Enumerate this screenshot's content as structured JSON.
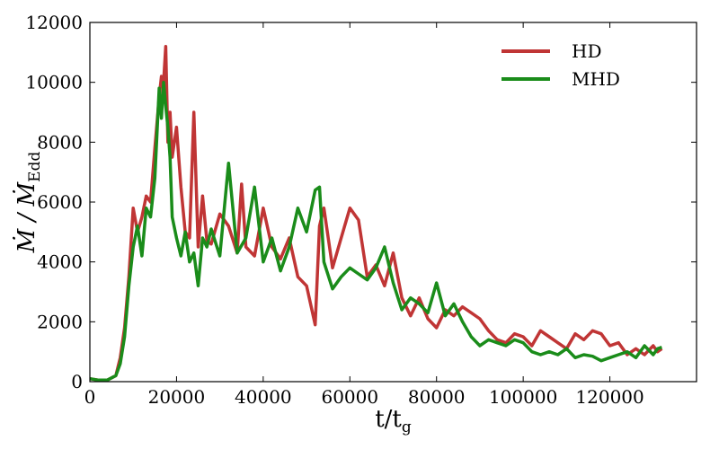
{
  "chart_data": {
    "type": "line",
    "title": "",
    "xlabel": {
      "base": "t/t",
      "sub": "g"
    },
    "ylabel": {
      "base": "Ṁ / Ṁ",
      "sub": "Edd"
    },
    "xlim": [
      0,
      140000
    ],
    "ylim": [
      0,
      12000
    ],
    "xticks": [
      0,
      20000,
      40000,
      60000,
      80000,
      100000,
      120000
    ],
    "yticks": [
      0,
      2000,
      4000,
      6000,
      8000,
      10000,
      12000
    ],
    "grid": false,
    "legend_position": "top-right",
    "series": [
      {
        "name": "HD",
        "color": "#c03535",
        "x": [
          0,
          2000,
          4000,
          6000,
          7000,
          8000,
          9000,
          10000,
          11000,
          12000,
          13000,
          14000,
          15000,
          16000,
          16500,
          17000,
          17500,
          18000,
          18500,
          19000,
          20000,
          21000,
          22000,
          23000,
          24000,
          25000,
          26000,
          27000,
          28000,
          30000,
          32000,
          34000,
          35000,
          36000,
          38000,
          40000,
          42000,
          44000,
          46000,
          48000,
          50000,
          52000,
          53000,
          54000,
          56000,
          58000,
          60000,
          62000,
          64000,
          66000,
          68000,
          70000,
          72000,
          74000,
          76000,
          78000,
          80000,
          82000,
          84000,
          86000,
          88000,
          90000,
          92000,
          94000,
          96000,
          98000,
          100000,
          102000,
          104000,
          106000,
          108000,
          110000,
          112000,
          114000,
          116000,
          118000,
          120000,
          122000,
          124000,
          126000,
          128000,
          130000,
          131000,
          132000
        ],
        "y": [
          100,
          50,
          50,
          200,
          800,
          1800,
          3500,
          5800,
          5000,
          5500,
          6200,
          6000,
          7800,
          9500,
          10200,
          10000,
          11200,
          8000,
          9000,
          7500,
          8500,
          6500,
          5000,
          4800,
          9000,
          4500,
          6200,
          4700,
          4600,
          5600,
          5200,
          4300,
          6600,
          4500,
          4200,
          5800,
          4500,
          4100,
          4800,
          3500,
          3200,
          1900,
          5200,
          5800,
          3800,
          4800,
          5800,
          5400,
          3500,
          3900,
          3200,
          4300,
          2800,
          2200,
          2800,
          2100,
          1800,
          2400,
          2200,
          2500,
          2300,
          2100,
          1700,
          1400,
          1300,
          1600,
          1500,
          1200,
          1700,
          1500,
          1300,
          1100,
          1600,
          1400,
          1700,
          1600,
          1200,
          1300,
          900,
          1100,
          900,
          1200,
          1000,
          1100
        ]
      },
      {
        "name": "MHD",
        "color": "#1a8c1a",
        "x": [
          0,
          2000,
          4000,
          6000,
          7000,
          8000,
          9000,
          10000,
          11000,
          12000,
          13000,
          14000,
          15000,
          16000,
          16500,
          17000,
          17500,
          18000,
          18500,
          19000,
          20000,
          21000,
          22000,
          23000,
          24000,
          25000,
          26000,
          27000,
          28000,
          30000,
          32000,
          34000,
          36000,
          38000,
          40000,
          42000,
          44000,
          46000,
          48000,
          50000,
          52000,
          53000,
          54000,
          56000,
          58000,
          60000,
          62000,
          64000,
          66000,
          68000,
          70000,
          72000,
          74000,
          76000,
          78000,
          80000,
          82000,
          84000,
          86000,
          88000,
          90000,
          92000,
          94000,
          96000,
          98000,
          100000,
          102000,
          104000,
          106000,
          108000,
          110000,
          112000,
          114000,
          116000,
          118000,
          120000,
          122000,
          124000,
          126000,
          128000,
          130000,
          131000,
          132000
        ],
        "y": [
          100,
          50,
          50,
          200,
          600,
          1500,
          3200,
          4500,
          5200,
          4200,
          5800,
          5500,
          6800,
          9800,
          8800,
          10000,
          9200,
          8500,
          7500,
          5500,
          4800,
          4200,
          5000,
          4000,
          4300,
          3200,
          4800,
          4500,
          5100,
          4200,
          7300,
          4300,
          4800,
          6500,
          4000,
          4800,
          3700,
          4500,
          5800,
          5000,
          6400,
          6500,
          4000,
          3100,
          3500,
          3800,
          3600,
          3400,
          3800,
          4500,
          3300,
          2400,
          2800,
          2600,
          2300,
          3300,
          2200,
          2600,
          2000,
          1500,
          1200,
          1400,
          1300,
          1200,
          1400,
          1300,
          1000,
          900,
          1000,
          900,
          1100,
          800,
          900,
          850,
          700,
          800,
          900,
          1000,
          800,
          1200,
          900,
          1100,
          1150
        ]
      }
    ]
  }
}
